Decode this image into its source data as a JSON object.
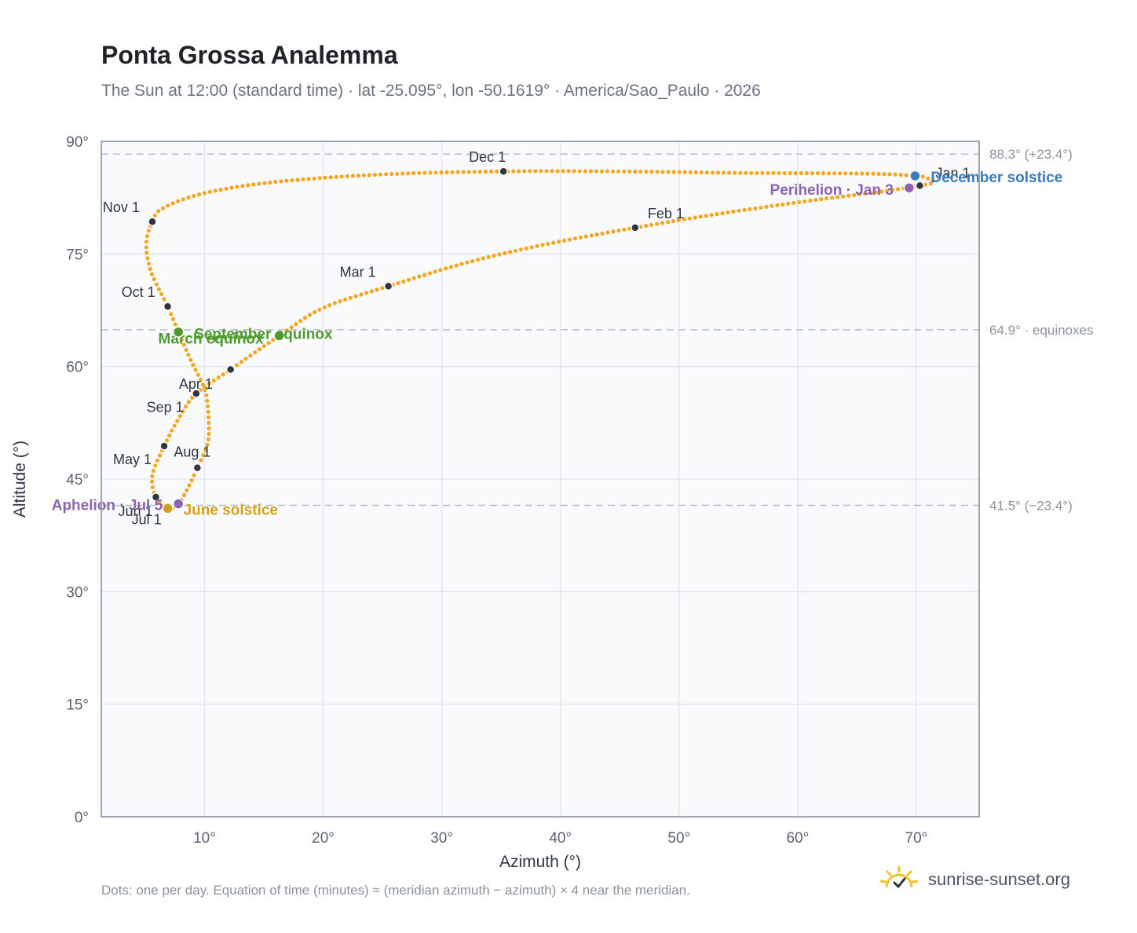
{
  "title": "Ponta Grossa Analemma",
  "subtitle": "The Sun at 12:00 (standard time) · lat -25.095°, lon -50.1619° · America/Sao_Paulo · 2026",
  "footnote": "Dots: one per day. Equation of time (minutes) ≈ (meridian azimuth − azimuth) × 4 near the meridian.",
  "brand": {
    "text": "sunrise-sunset.org",
    "icon": "sun-logo-icon"
  },
  "colors": {
    "curve": "#f5a623",
    "month_marker": "#2f3640",
    "equinox": "#4e9a2e",
    "june_solstice": "#d4a017",
    "december_solstice": "#3a7bbf",
    "apsis": "#8e64b0",
    "grid": "#e4e7ec",
    "plot_bg": "#f8fafc",
    "frame": "#9aa5b5",
    "ref_line": "#b8bfc9"
  },
  "chart_data": {
    "type": "scatter",
    "xlabel": "Azimuth (°)",
    "ylabel": "Altitude (°)",
    "xlim": [
      1.3,
      75.3
    ],
    "ylim": [
      0,
      90
    ],
    "x_ticks": [
      "10°",
      "20°",
      "30°",
      "40°",
      "50°",
      "60°",
      "70°"
    ],
    "y_ticks": [
      "0°",
      "15°",
      "30°",
      "45°",
      "60°",
      "75°",
      "90°"
    ],
    "grid": true,
    "reference_lines": [
      {
        "y": 88.3,
        "label": "88.3° (+23.4°)"
      },
      {
        "y": 64.9,
        "label": "64.9° · equinoxes"
      },
      {
        "y": 41.5,
        "label": "41.5° (−23.4°)"
      }
    ],
    "month_markers": [
      {
        "label": "Jan 1",
        "azimuth": 70.3,
        "altitude": 84.1
      },
      {
        "label": "Feb 1",
        "azimuth": 46.3,
        "altitude": 78.5
      },
      {
        "label": "Mar 1",
        "azimuth": 25.5,
        "altitude": 70.7
      },
      {
        "label": "Apr 1",
        "azimuth": 9.3,
        "altitude": 56.4
      },
      {
        "label": "May 1",
        "azimuth": 6.6,
        "altitude": 49.4
      },
      {
        "label": "Jun 1",
        "azimuth": 5.9,
        "altitude": 42.6
      },
      {
        "label": "Jul 1",
        "azimuth": 6.9,
        "altitude": 41.2
      },
      {
        "label": "Aug 1",
        "azimuth": 9.4,
        "altitude": 46.5
      },
      {
        "label": "Sep 1",
        "azimuth": 12.2,
        "altitude": 59.6
      },
      {
        "label": "Oct 1",
        "azimuth": 6.9,
        "altitude": 68.0
      },
      {
        "label": "Nov 1",
        "azimuth": 5.6,
        "altitude": 79.3
      },
      {
        "label": "Dec 1",
        "azimuth": 35.2,
        "altitude": 86.0
      }
    ],
    "events": [
      {
        "label": "December solstice",
        "azimuth": 69.9,
        "altitude": 85.4,
        "kind": "december_solstice"
      },
      {
        "label": "Perihelion · Jan 3",
        "azimuth": 69.4,
        "altitude": 83.8,
        "kind": "apsis"
      },
      {
        "label": "March equinox",
        "azimuth": 16.3,
        "altitude": 64.1,
        "kind": "equinox"
      },
      {
        "label": "September equinox",
        "azimuth": 7.8,
        "altitude": 64.6,
        "kind": "equinox"
      },
      {
        "label": "June solstice",
        "azimuth": 6.9,
        "altitude": 41.1,
        "kind": "june_solstice"
      },
      {
        "label": "Aphelion · Jul 5",
        "azimuth": 7.8,
        "altitude": 41.7,
        "kind": "apsis"
      }
    ],
    "curve_path": [
      [
        70.3,
        84.1
      ],
      [
        71.5,
        84.6
      ],
      [
        70.7,
        85.2
      ],
      [
        69.9,
        85.4
      ],
      [
        66.0,
        85.7
      ],
      [
        55.0,
        85.8
      ],
      [
        45.0,
        86.0
      ],
      [
        35.2,
        86.0
      ],
      [
        25.0,
        85.6
      ],
      [
        16.0,
        84.6
      ],
      [
        10.0,
        83.1
      ],
      [
        6.5,
        81.1
      ],
      [
        5.6,
        79.3
      ],
      [
        5.1,
        76.4
      ],
      [
        5.5,
        72.6
      ],
      [
        6.9,
        68.0
      ],
      [
        7.8,
        64.6
      ],
      [
        8.8,
        61.0
      ],
      [
        10.0,
        57.0
      ],
      [
        10.3,
        54.0
      ],
      [
        10.3,
        50.0
      ],
      [
        9.4,
        46.5
      ],
      [
        8.5,
        43.5
      ],
      [
        7.8,
        41.7
      ],
      [
        6.9,
        41.1
      ],
      [
        5.9,
        42.6
      ],
      [
        5.6,
        45.5
      ],
      [
        6.6,
        49.4
      ],
      [
        7.8,
        53.0
      ],
      [
        9.3,
        56.4
      ],
      [
        12.2,
        59.6
      ],
      [
        16.3,
        64.1
      ],
      [
        20.0,
        67.8
      ],
      [
        25.5,
        70.7
      ],
      [
        32.0,
        73.8
      ],
      [
        38.5,
        76.2
      ],
      [
        46.3,
        78.5
      ],
      [
        54.0,
        80.5
      ],
      [
        62.0,
        82.3
      ],
      [
        67.0,
        83.3
      ],
      [
        70.3,
        84.1
      ]
    ]
  }
}
